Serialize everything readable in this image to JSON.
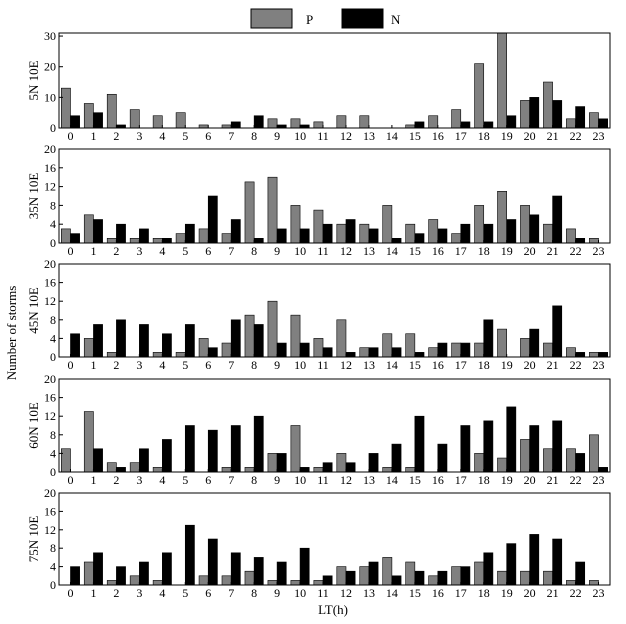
{
  "legend": {
    "items": [
      {
        "label": "P",
        "color": "#808080"
      },
      {
        "label": "N",
        "color": "#000000"
      }
    ]
  },
  "x_label": "LT(h)",
  "y_label": "Number of storms",
  "chart_data": [
    {
      "type": "bar",
      "panel_label": "5N 10E",
      "categories": [
        "0",
        "1",
        "2",
        "3",
        "4",
        "5",
        "6",
        "7",
        "8",
        "9",
        "10",
        "11",
        "12",
        "13",
        "14",
        "15",
        "16",
        "17",
        "18",
        "19",
        "20",
        "21",
        "22",
        "23"
      ],
      "ylim": [
        0,
        31
      ],
      "yticks": [
        0,
        10,
        20,
        30
      ],
      "series": [
        {
          "name": "P",
          "values": [
            13,
            8,
            11,
            6,
            4,
            5,
            1,
            1,
            0,
            3,
            3,
            2,
            4,
            4,
            0,
            1,
            4,
            6,
            21,
            31,
            9,
            15,
            3,
            5
          ]
        },
        {
          "name": "N",
          "values": [
            4,
            5,
            1,
            0,
            0,
            0,
            0,
            2,
            4,
            1,
            1,
            0,
            0,
            0,
            0,
            2,
            0,
            2,
            2,
            4,
            10,
            9,
            7,
            3
          ]
        }
      ]
    },
    {
      "type": "bar",
      "panel_label": "35N 10E",
      "categories": [
        "0",
        "1",
        "2",
        "3",
        "4",
        "5",
        "6",
        "7",
        "8",
        "9",
        "10",
        "11",
        "12",
        "13",
        "14",
        "15",
        "16",
        "17",
        "18",
        "19",
        "20",
        "21",
        "22",
        "23"
      ],
      "ylim": [
        0,
        20
      ],
      "yticks": [
        0,
        4,
        8,
        12,
        16,
        20
      ],
      "series": [
        {
          "name": "P",
          "values": [
            3,
            6,
            1,
            1,
            1,
            2,
            3,
            2,
            13,
            14,
            8,
            7,
            4,
            4,
            8,
            4,
            5,
            2,
            8,
            11,
            8,
            4,
            3,
            1
          ]
        },
        {
          "name": "N",
          "values": [
            2,
            5,
            4,
            3,
            1,
            4,
            10,
            5,
            1,
            3,
            3,
            4,
            5,
            3,
            1,
            2,
            3,
            4,
            4,
            5,
            6,
            10,
            1,
            0
          ]
        }
      ]
    },
    {
      "type": "bar",
      "panel_label": "45N 10E",
      "categories": [
        "0",
        "1",
        "2",
        "3",
        "4",
        "5",
        "6",
        "7",
        "8",
        "9",
        "10",
        "11",
        "12",
        "13",
        "14",
        "15",
        "16",
        "17",
        "18",
        "19",
        "20",
        "21",
        "22",
        "23"
      ],
      "ylim": [
        0,
        20
      ],
      "yticks": [
        0,
        4,
        8,
        12,
        16,
        20
      ],
      "series": [
        {
          "name": "P",
          "values": [
            0,
            4,
            1,
            0,
            1,
            1,
            4,
            3,
            9,
            12,
            9,
            4,
            8,
            2,
            5,
            5,
            2,
            3,
            3,
            6,
            4,
            3,
            2,
            1
          ]
        },
        {
          "name": "N",
          "values": [
            5,
            7,
            8,
            7,
            5,
            7,
            2,
            8,
            7,
            3,
            3,
            2,
            1,
            2,
            2,
            1,
            3,
            3,
            8,
            0,
            6,
            11,
            1,
            1
          ]
        }
      ]
    },
    {
      "type": "bar",
      "panel_label": "60N 10E",
      "categories": [
        "0",
        "1",
        "2",
        "3",
        "4",
        "5",
        "6",
        "7",
        "8",
        "9",
        "10",
        "11",
        "12",
        "13",
        "14",
        "15",
        "16",
        "17",
        "18",
        "19",
        "20",
        "21",
        "22",
        "23"
      ],
      "ylim": [
        0,
        20
      ],
      "yticks": [
        0,
        4,
        8,
        12,
        16,
        20
      ],
      "series": [
        {
          "name": "P",
          "values": [
            5,
            13,
            2,
            2,
            1,
            0,
            0,
            1,
            1,
            4,
            10,
            1,
            4,
            0,
            1,
            1,
            0,
            0,
            4,
            3,
            7,
            5,
            5,
            8
          ]
        },
        {
          "name": "N",
          "values": [
            0,
            5,
            1,
            5,
            7,
            10,
            9,
            10,
            12,
            4,
            1,
            2,
            2,
            4,
            6,
            12,
            6,
            10,
            11,
            14,
            10,
            11,
            4,
            1
          ]
        }
      ]
    },
    {
      "type": "bar",
      "panel_label": "75N 10E",
      "categories": [
        "0",
        "1",
        "2",
        "3",
        "4",
        "5",
        "6",
        "7",
        "8",
        "9",
        "10",
        "11",
        "12",
        "13",
        "14",
        "15",
        "16",
        "17",
        "18",
        "19",
        "20",
        "21",
        "22",
        "23"
      ],
      "ylim": [
        0,
        20
      ],
      "yticks": [
        0,
        4,
        8,
        12,
        16,
        20
      ],
      "series": [
        {
          "name": "P",
          "values": [
            0,
            5,
            1,
            2,
            1,
            0,
            2,
            2,
            3,
            1,
            1,
            1,
            4,
            4,
            6,
            5,
            2,
            4,
            5,
            3,
            3,
            3,
            1,
            1
          ]
        },
        {
          "name": "N",
          "values": [
            4,
            7,
            4,
            5,
            7,
            13,
            10,
            7,
            6,
            5,
            8,
            2,
            3,
            5,
            2,
            3,
            3,
            4,
            7,
            9,
            11,
            10,
            5,
            0
          ]
        }
      ]
    }
  ]
}
